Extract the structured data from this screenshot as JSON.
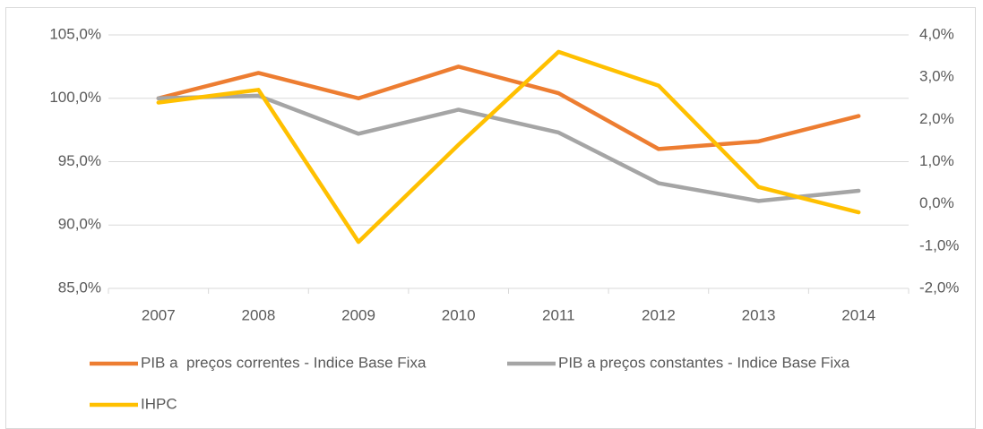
{
  "chart_data": {
    "type": "line",
    "categories": [
      "2007",
      "2008",
      "2009",
      "2010",
      "2011",
      "2012",
      "2013",
      "2014"
    ],
    "series": [
      {
        "name": "PIB a  preços correntes - Indice Base Fixa",
        "color": "#ed7d31",
        "values": [
          100.0,
          102.0,
          100.0,
          102.5,
          100.4,
          96.0,
          96.6,
          98.6
        ]
      },
      {
        "name": "PIB a preços constantes - Indice Base Fixa",
        "color": "#a5a5a5",
        "values": [
          100.0,
          100.2,
          97.2,
          99.1,
          97.3,
          93.3,
          91.9,
          92.7
        ]
      },
      {
        "name": "IHPC",
        "color": "#ffc000",
        "axis": "y2",
        "values": [
          2.4,
          2.7,
          -0.9,
          1.4,
          3.6,
          2.8,
          0.4,
          -0.2
        ]
      }
    ],
    "ylim": [
      85,
      105
    ],
    "yticks": [
      {
        "value": 85,
        "label": "85,0%"
      },
      {
        "value": 90,
        "label": "90,0%"
      },
      {
        "value": 95,
        "label": "95,0%"
      },
      {
        "value": 100,
        "label": "100,0%"
      },
      {
        "value": 105,
        "label": "105,0%"
      }
    ],
    "y2lim": [
      -2,
      4
    ],
    "y2ticks": [
      {
        "value": -2,
        "label": "-2,0%"
      },
      {
        "value": -1,
        "label": "-1,0%"
      },
      {
        "value": 0,
        "label": "0,0%"
      },
      {
        "value": 1,
        "label": "1,0%"
      },
      {
        "value": 2,
        "label": "2,0%"
      },
      {
        "value": 3,
        "label": "3,0%"
      },
      {
        "value": 4,
        "label": "4,0%"
      }
    ],
    "grid": true
  }
}
